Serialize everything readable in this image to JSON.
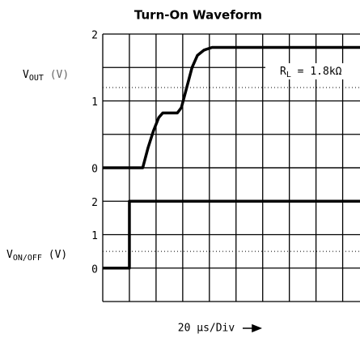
{
  "chart_data": [
    {
      "type": "line",
      "title": "Turn-On Waveform",
      "ylabel": {
        "main": "V",
        "sub": "OUT",
        "unit": " (V)"
      },
      "x": [
        0,
        30,
        34,
        38,
        42,
        45,
        56,
        59,
        63,
        67,
        71,
        76,
        82,
        193
      ],
      "series": [
        {
          "color": "#000000",
          "values": [
            0,
            0,
            0.3,
            0.55,
            0.75,
            0.82,
            0.82,
            0.9,
            1.2,
            1.5,
            1.68,
            1.76,
            1.8,
            1.8
          ]
        }
      ],
      "xlim": [
        0,
        193
      ],
      "xticks": [
        0,
        20,
        40,
        60,
        80,
        100,
        120,
        140,
        160,
        180
      ],
      "ylim": [
        0,
        2
      ],
      "yticks": [
        0,
        1,
        2
      ],
      "grid_y": [
        0,
        0.5,
        1,
        1.5,
        2
      ],
      "dotted_y": 1.2,
      "annotation": {
        "main": "R",
        "sub": "L",
        "rest": " = 1.8kΩ"
      },
      "xlabel": "20 µs/Div"
    },
    {
      "type": "line",
      "ylabel": {
        "main": "V",
        "sub": "ON/OFF",
        "unit": " (V)"
      },
      "x": [
        0,
        20,
        20,
        193
      ],
      "series": [
        {
          "color": "#000000",
          "values": [
            0,
            0,
            2,
            2
          ]
        }
      ],
      "xlim": [
        0,
        193
      ],
      "xticks": [
        0,
        20,
        40,
        60,
        80,
        100,
        120,
        140,
        160,
        180
      ],
      "ylim": [
        -1,
        3
      ],
      "yticks": [
        0,
        1,
        2
      ],
      "grid_y": [
        -1,
        0,
        1,
        2,
        3
      ],
      "dotted_y": 0.5
    }
  ]
}
